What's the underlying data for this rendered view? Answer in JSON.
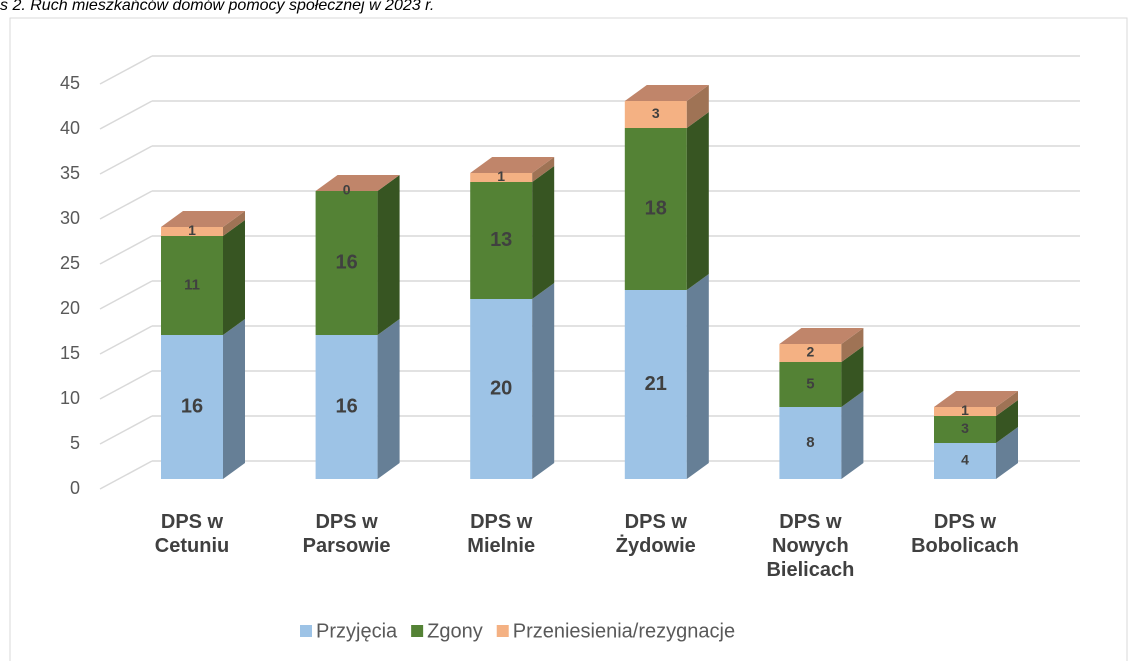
{
  "chart_data": {
    "type": "bar3d_stacked",
    "title": "s 2. Ruch mieszkańców domów pomocy społecznej w 2023 r.",
    "categories": [
      "DPS w Cetuniu",
      "DPS w Parsowie",
      "DPS w Mielnie",
      "DPS w Żydowie",
      "DPS w Nowych Bielicach",
      "DPS w Bobolicach"
    ],
    "series": [
      {
        "name": "Przyjęcia",
        "color": "#9dc3e6",
        "values": [
          16,
          16,
          20,
          21,
          8,
          4
        ]
      },
      {
        "name": "Zgony",
        "color": "#548235",
        "values": [
          11,
          16,
          13,
          18,
          5,
          3
        ]
      },
      {
        "name": "Przeniesienia/rezygnacje",
        "color": "#f4b183",
        "values": [
          1,
          0,
          1,
          3,
          2,
          1
        ]
      }
    ],
    "ylim": [
      0,
      45
    ],
    "yticks": [
      0,
      5,
      10,
      15,
      20,
      25,
      30,
      35,
      40,
      45
    ],
    "grid": true,
    "legend": "bottom"
  }
}
